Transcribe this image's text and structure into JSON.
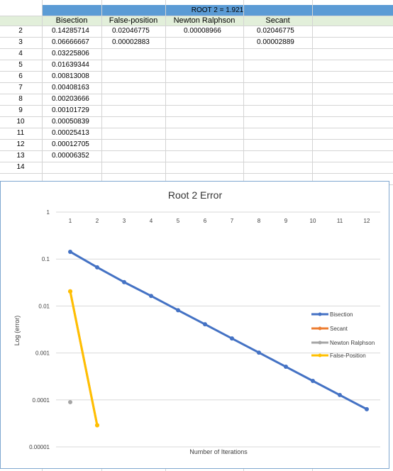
{
  "sheet": {
    "title": "ROOT 2 = 1.921",
    "headers": [
      "Bisection",
      "False-position",
      "Newton Ralphson",
      "Secant"
    ],
    "row_numbers": [
      "2",
      "3",
      "4",
      "5",
      "6",
      "7",
      "8",
      "9",
      "10",
      "11",
      "12",
      "13",
      "14"
    ],
    "rows": [
      [
        "0.14285714",
        "0.02046775",
        "0.00008966",
        "0.02046775"
      ],
      [
        "0.06666667",
        "0.00002883",
        "",
        "0.00002889"
      ],
      [
        "0.03225806",
        "",
        "",
        ""
      ],
      [
        "0.01639344",
        "",
        "",
        ""
      ],
      [
        "0.00813008",
        "",
        "",
        ""
      ],
      [
        "0.00408163",
        "",
        "",
        ""
      ],
      [
        "0.00203666",
        "",
        "",
        ""
      ],
      [
        "0.00101729",
        "",
        "",
        ""
      ],
      [
        "0.00050839",
        "",
        "",
        ""
      ],
      [
        "0.00025413",
        "",
        "",
        ""
      ],
      [
        "0.00012705",
        "",
        "",
        ""
      ],
      [
        "0.00006352",
        "",
        "",
        ""
      ],
      [
        "",
        "",
        "",
        ""
      ]
    ]
  },
  "chart_data": {
    "type": "line",
    "title": "Root 2 Error",
    "xlabel": "Number of Iterations",
    "ylabel": "Log (error)",
    "yscale": "log",
    "ylim": [
      1e-05,
      1
    ],
    "x_ticks": [
      "1",
      "2",
      "3",
      "4",
      "5",
      "6",
      "7",
      "8",
      "9",
      "10",
      "11",
      "12"
    ],
    "y_ticks": [
      "1",
      "0.1",
      "0.01",
      "0.001",
      "0.0001",
      "0.00001"
    ],
    "legend_position": "right",
    "grid": true,
    "series": [
      {
        "name": "Bisection",
        "color": "#4472c4",
        "x": [
          1,
          2,
          3,
          4,
          5,
          6,
          7,
          8,
          9,
          10,
          11,
          12
        ],
        "values": [
          0.14285714,
          0.06666667,
          0.03225806,
          0.01639344,
          0.00813008,
          0.00408163,
          0.00203666,
          0.00101729,
          0.00050839,
          0.00025413,
          0.00012705,
          6.352e-05
        ]
      },
      {
        "name": "Secant",
        "color": "#ed7d31",
        "x": [
          1,
          2
        ],
        "values": [
          0.02046775,
          2.889e-05
        ]
      },
      {
        "name": "Newton Ralphson",
        "color": "#a5a5a5",
        "x": [
          1
        ],
        "values": [
          8.966e-05
        ]
      },
      {
        "name": "False-Position",
        "color": "#ffc000",
        "x": [
          1,
          2
        ],
        "values": [
          0.02046775,
          2.883e-05
        ]
      }
    ]
  }
}
